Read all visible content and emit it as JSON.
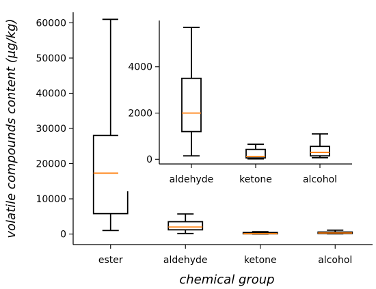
{
  "chart_data": [
    {
      "type": "box",
      "xlabel": "chemical group",
      "ylabel": "volatile compounds content (μg/kg)",
      "categories": [
        "ester",
        "aldehyde",
        "ketone",
        "alcohol"
      ],
      "ylim": [
        -3000,
        63000
      ],
      "yticks": [
        0,
        10000,
        20000,
        30000,
        40000,
        50000,
        60000
      ],
      "ytick_labels": [
        "0",
        "10000",
        "20000",
        "30000",
        "40000",
        "50000",
        "60000"
      ],
      "boxes": [
        {
          "category": "ester",
          "min": 1000,
          "q1": 5800,
          "median": 17300,
          "q3": 28000,
          "max": 61000
        },
        {
          "category": "aldehyde",
          "min": 150,
          "q1": 1200,
          "median": 2000,
          "q3": 3500,
          "max": 5700
        },
        {
          "category": "ketone",
          "min": 20,
          "q1": 60,
          "median": 120,
          "q3": 430,
          "max": 650
        },
        {
          "category": "alcohol",
          "min": 70,
          "q1": 150,
          "median": 300,
          "q3": 560,
          "max": 1100
        }
      ],
      "grid": false
    },
    {
      "type": "box",
      "role": "inset",
      "xlabel": "",
      "ylabel": "",
      "categories": [
        "aldehyde",
        "ketone",
        "alcohol"
      ],
      "ylim": [
        -200,
        6000
      ],
      "yticks": [
        0,
        2000,
        4000
      ],
      "ytick_labels": [
        "0",
        "2000",
        "4000"
      ],
      "boxes": [
        {
          "category": "aldehyde",
          "min": 150,
          "q1": 1200,
          "median": 2000,
          "q3": 3500,
          "max": 5700
        },
        {
          "category": "ketone",
          "min": 20,
          "q1": 60,
          "median": 120,
          "q3": 430,
          "max": 650
        },
        {
          "category": "alcohol",
          "min": 70,
          "q1": 150,
          "median": 300,
          "q3": 560,
          "max": 1100
        }
      ],
      "grid": false
    }
  ],
  "colors": {
    "median": "#ff7f0e",
    "box": "#000000"
  }
}
